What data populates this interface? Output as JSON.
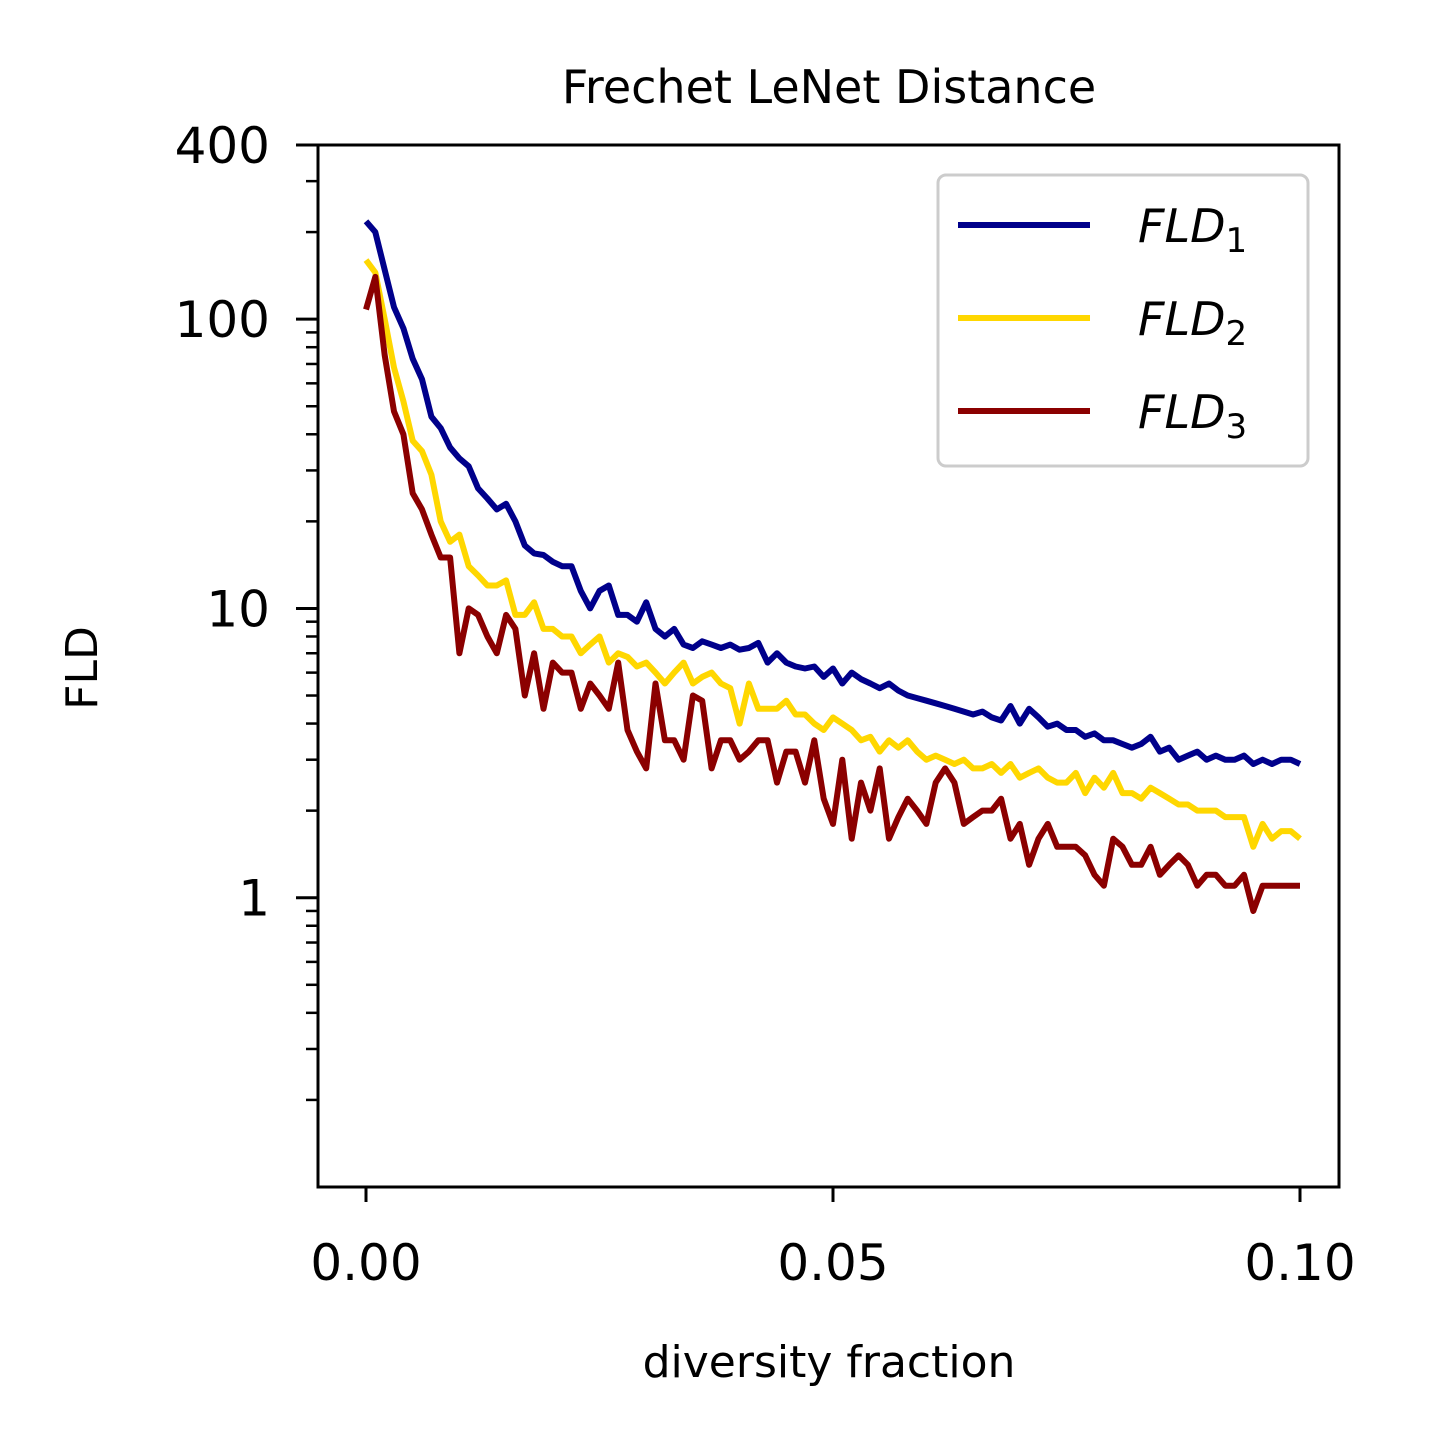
{
  "chart_data": {
    "type": "line",
    "title": "Frechet LeNet Distance",
    "xlabel": "diversity fraction",
    "ylabel": "FLD",
    "yscale": "log",
    "xlim": [
      -0.005,
      0.105
    ],
    "ylim": [
      0.1,
      400
    ],
    "xticks": [
      0.0,
      0.05,
      0.1
    ],
    "xtick_labels": [
      "0.00",
      "0.05",
      "0.10"
    ],
    "yticks": [
      1,
      10,
      100,
      400
    ],
    "ytick_labels": [
      "1",
      "10",
      "100",
      "400"
    ],
    "grid": false,
    "legend_position": "top-right",
    "x": [
      0.0,
      0.001,
      0.002,
      0.003,
      0.004,
      0.005,
      0.006,
      0.007,
      0.008,
      0.009,
      0.01,
      0.011,
      0.012,
      0.013,
      0.014,
      0.015,
      0.016,
      0.017,
      0.018,
      0.019,
      0.02,
      0.021,
      0.022,
      0.023,
      0.024,
      0.025,
      0.026,
      0.027,
      0.028,
      0.029,
      0.03,
      0.031,
      0.032,
      0.033,
      0.034,
      0.035,
      0.036,
      0.037,
      0.038,
      0.039,
      0.04,
      0.041,
      0.042,
      0.043,
      0.044,
      0.045,
      0.046,
      0.047,
      0.048,
      0.049,
      0.05,
      0.051,
      0.052,
      0.053,
      0.054,
      0.055,
      0.056,
      0.057,
      0.058,
      0.059,
      0.06,
      0.061,
      0.062,
      0.063,
      0.064,
      0.065,
      0.066,
      0.067,
      0.068,
      0.069,
      0.07,
      0.071,
      0.072,
      0.073,
      0.074,
      0.075,
      0.076,
      0.077,
      0.078,
      0.079,
      0.08,
      0.081,
      0.082,
      0.083,
      0.084,
      0.085,
      0.086,
      0.087,
      0.088,
      0.089,
      0.09,
      0.091,
      0.092,
      0.093,
      0.094,
      0.095,
      0.096,
      0.097,
      0.098,
      0.099,
      0.1
    ],
    "series": [
      {
        "name": "FLD_1",
        "legend_label": "FLD",
        "legend_sub": "1",
        "color": "#00008b",
        "values": [
          218,
          200,
          148,
          110,
          93,
          73,
          62,
          46,
          42,
          36,
          33,
          31,
          26,
          24,
          22,
          23,
          20,
          16.5,
          15.5,
          15.3,
          14.5,
          14.0,
          14.0,
          11.5,
          10.0,
          11.5,
          12.0,
          9.5,
          9.5,
          9.0,
          10.5,
          8.5,
          8.0,
          8.5,
          7.5,
          7.3,
          7.7,
          7.5,
          7.3,
          7.5,
          7.2,
          7.3,
          7.6,
          6.5,
          7.0,
          6.5,
          6.3,
          6.2,
          6.3,
          5.8,
          6.2,
          5.5,
          6.0,
          5.7,
          5.5,
          5.3,
          5.5,
          5.2,
          5.0,
          4.9,
          4.8,
          4.7,
          4.6,
          4.5,
          4.4,
          4.3,
          4.4,
          4.2,
          4.1,
          4.6,
          4.0,
          4.5,
          4.2,
          3.9,
          4.0,
          3.8,
          3.8,
          3.6,
          3.7,
          3.5,
          3.5,
          3.4,
          3.3,
          3.4,
          3.6,
          3.2,
          3.3,
          3.0,
          3.1,
          3.2,
          3.0,
          3.1,
          3.0,
          3.0,
          3.1,
          2.9,
          3.0,
          2.9,
          3.0,
          3.0,
          2.9
        ]
      },
      {
        "name": "FLD_2",
        "legend_label": "FLD",
        "legend_sub": "2",
        "color": "#ffd700",
        "values": [
          160,
          145,
          100,
          68,
          52,
          38,
          35,
          29,
          20,
          17,
          18,
          14,
          13,
          12,
          12,
          12.5,
          9.5,
          9.5,
          10.5,
          8.5,
          8.5,
          8.0,
          8.0,
          7.0,
          7.5,
          8.0,
          6.5,
          7.0,
          6.8,
          6.3,
          6.5,
          6.0,
          5.5,
          6.0,
          6.5,
          5.5,
          5.8,
          6.0,
          5.5,
          5.3,
          4.0,
          5.5,
          4.5,
          4.5,
          4.5,
          4.8,
          4.3,
          4.3,
          4.0,
          3.8,
          4.2,
          4.0,
          3.8,
          3.5,
          3.6,
          3.2,
          3.5,
          3.3,
          3.5,
          3.2,
          3.0,
          3.1,
          3.0,
          2.9,
          3.0,
          2.8,
          2.8,
          2.9,
          2.7,
          2.9,
          2.6,
          2.7,
          2.8,
          2.6,
          2.5,
          2.5,
          2.7,
          2.3,
          2.6,
          2.4,
          2.7,
          2.3,
          2.3,
          2.2,
          2.4,
          2.3,
          2.2,
          2.1,
          2.1,
          2.0,
          2.0,
          2.0,
          1.9,
          1.9,
          1.9,
          1.5,
          1.8,
          1.6,
          1.7,
          1.7,
          1.6
        ]
      },
      {
        "name": "FLD_3",
        "legend_label": "FLD",
        "legend_sub": "3",
        "color": "#8b0000",
        "values": [
          108,
          140,
          75,
          48,
          40,
          25,
          22,
          18,
          15,
          15,
          7.0,
          10,
          9.5,
          8.0,
          7.0,
          9.5,
          8.5,
          5.0,
          7.0,
          4.5,
          6.5,
          6.0,
          6.0,
          4.5,
          5.5,
          5.0,
          4.5,
          6.5,
          3.8,
          3.2,
          2.8,
          5.5,
          3.5,
          3.5,
          3.0,
          5.0,
          4.8,
          2.8,
          3.5,
          3.5,
          3.0,
          3.2,
          3.5,
          3.5,
          2.5,
          3.2,
          3.2,
          2.5,
          3.5,
          2.2,
          1.8,
          3.0,
          1.6,
          2.5,
          2.0,
          2.8,
          1.6,
          1.9,
          2.2,
          2.0,
          1.8,
          2.5,
          2.8,
          2.5,
          1.8,
          1.9,
          2.0,
          2.0,
          2.2,
          1.6,
          1.8,
          1.3,
          1.6,
          1.8,
          1.5,
          1.5,
          1.5,
          1.4,
          1.2,
          1.1,
          1.6,
          1.5,
          1.3,
          1.3,
          1.5,
          1.2,
          1.3,
          1.4,
          1.3,
          1.1,
          1.2,
          1.2,
          1.1,
          1.1,
          1.2,
          0.9,
          1.1,
          1.1,
          1.1,
          1.1,
          1.1
        ]
      }
    ]
  }
}
